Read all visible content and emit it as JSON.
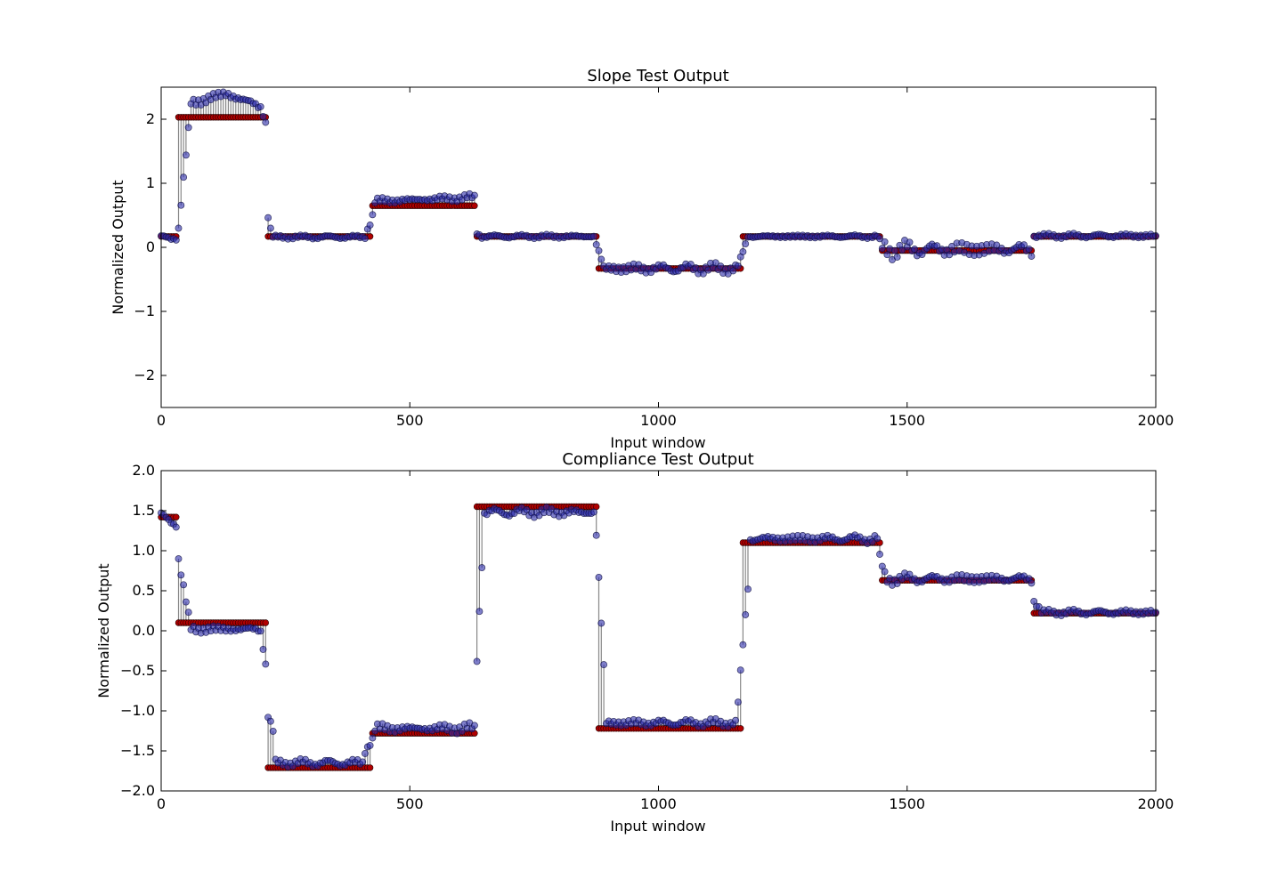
{
  "chart_data": [
    {
      "type": "scatter",
      "title": "Slope Test Output",
      "xlabel": "Input window",
      "ylabel": "Normalized Output",
      "xlim": [
        0,
        2000
      ],
      "ylim": [
        -2.5,
        2.5
      ],
      "xticks": [
        0,
        500,
        1000,
        1500,
        2000
      ],
      "yticks": [
        -2,
        -1,
        0,
        1,
        2
      ],
      "grid": false,
      "colors": {
        "actual": "#2a2aa8",
        "expected": "#b00000",
        "stem": "#606060"
      },
      "expected_segments": [
        [
          0,
          35,
          0.17
        ],
        [
          35,
          212,
          2.03
        ],
        [
          212,
          422,
          0.17
        ],
        [
          422,
          635,
          0.65
        ],
        [
          635,
          880,
          0.17
        ],
        [
          880,
          1167,
          -0.33
        ],
        [
          1167,
          1448,
          0.17
        ],
        [
          1448,
          1752,
          -0.05
        ],
        [
          1752,
          2000,
          0.17
        ]
      ],
      "actual_segments": [
        [
          0,
          35,
          0.15,
          0.04
        ],
        [
          35,
          60,
          [
            0.3,
            2.2
          ],
          0.05
        ],
        [
          60,
          200,
          [
            2.25,
            2.4,
            2.2
          ],
          0.07
        ],
        [
          200,
          212,
          [
            2.2,
            1.9
          ],
          0.04
        ],
        [
          212,
          222,
          [
            0.6,
            0.2
          ],
          0.03
        ],
        [
          222,
          410,
          0.16,
          0.025
        ],
        [
          410,
          430,
          [
            0.18,
            0.6
          ],
          0.04
        ],
        [
          430,
          632,
          [
            0.72,
            0.78
          ],
          0.05
        ],
        [
          632,
          645,
          [
            0.25,
            0.17
          ],
          0.03
        ],
        [
          645,
          875,
          0.17,
          0.025
        ],
        [
          875,
          890,
          [
            0.05,
            -0.3
          ],
          0.04
        ],
        [
          890,
          1160,
          -0.33,
          0.07
        ],
        [
          1160,
          1180,
          [
            -0.3,
            0.15
          ],
          0.04
        ],
        [
          1180,
          1445,
          0.17,
          0.025
        ],
        [
          1445,
          1755,
          -0.03,
          0.12
        ],
        [
          1755,
          2000,
          0.18,
          0.03
        ]
      ]
    },
    {
      "type": "scatter",
      "title": "Compliance Test Output",
      "xlabel": "Input window",
      "ylabel": "Normalized Output",
      "xlim": [
        0,
        2000
      ],
      "ylim": [
        -2.0,
        2.0
      ],
      "xticks": [
        0,
        500,
        1000,
        1500,
        2000
      ],
      "yticks": [
        -2.0,
        -1.5,
        -1.0,
        -0.5,
        0.0,
        0.5,
        1.0,
        1.5,
        2.0
      ],
      "grid": false,
      "colors": {
        "actual": "#2a2aa8",
        "expected": "#b00000",
        "stem": "#606060"
      },
      "expected_segments": [
        [
          0,
          35,
          1.42
        ],
        [
          35,
          212,
          0.1
        ],
        [
          212,
          422,
          -1.71
        ],
        [
          422,
          635,
          -1.28
        ],
        [
          635,
          880,
          1.55
        ],
        [
          880,
          1167,
          -1.22
        ],
        [
          1167,
          1448,
          1.1
        ],
        [
          1448,
          1752,
          0.63
        ],
        [
          1752,
          2000,
          0.22
        ]
      ],
      "actual_segments": [
        [
          0,
          35,
          [
            1.45,
            1.3
          ],
          0.03
        ],
        [
          35,
          60,
          [
            0.9,
            0.0
          ],
          0.05
        ],
        [
          60,
          200,
          0.02,
          0.05
        ],
        [
          200,
          212,
          [
            0.0,
            -0.5
          ],
          0.03
        ],
        [
          212,
          230,
          [
            -1.0,
            -1.35
          ],
          0.04
        ],
        [
          230,
          410,
          -1.65,
          0.04
        ],
        [
          410,
          430,
          [
            -1.5,
            -1.3
          ],
          0.03
        ],
        [
          430,
          632,
          -1.22,
          0.06
        ],
        [
          632,
          648,
          [
            -0.7,
            1.2
          ],
          0.05
        ],
        [
          648,
          875,
          1.48,
          0.05
        ],
        [
          875,
          895,
          [
            1.2,
            -1.0
          ],
          0.05
        ],
        [
          895,
          1160,
          -1.15,
          0.04
        ],
        [
          1160,
          1185,
          [
            -0.9,
            0.9
          ],
          0.05
        ],
        [
          1185,
          1445,
          1.15,
          0.05
        ],
        [
          1445,
          1460,
          [
            0.9,
            0.6
          ],
          0.04
        ],
        [
          1460,
          1752,
          0.65,
          0.06
        ],
        [
          1752,
          1770,
          [
            0.4,
            0.25
          ],
          0.03
        ],
        [
          1770,
          2000,
          0.23,
          0.03
        ]
      ]
    }
  ]
}
